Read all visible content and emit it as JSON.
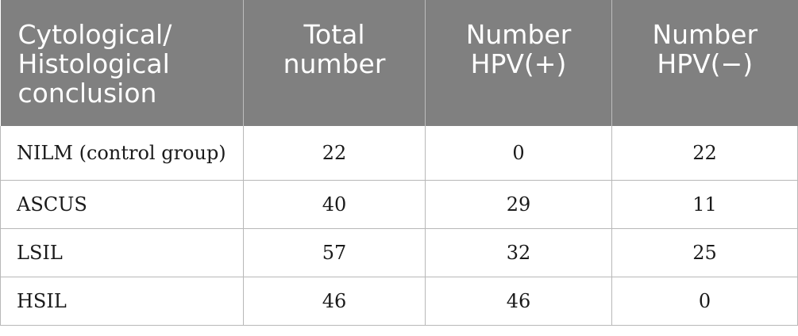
{
  "table": {
    "headers": [
      [
        "Cytological/",
        "Histological",
        "conclusion"
      ],
      [
        "Total",
        "number"
      ],
      [
        "Number",
        "HPV(+)"
      ],
      [
        "Number",
        "HPV(−)"
      ]
    ],
    "rows": [
      [
        "NILM (control group)",
        "22",
        "0",
        "22"
      ],
      [
        "ASCUS",
        "40",
        "29",
        "11"
      ],
      [
        "LSIL",
        "57",
        "32",
        "25"
      ],
      [
        "HSIL",
        "46",
        "46",
        "0"
      ]
    ]
  }
}
